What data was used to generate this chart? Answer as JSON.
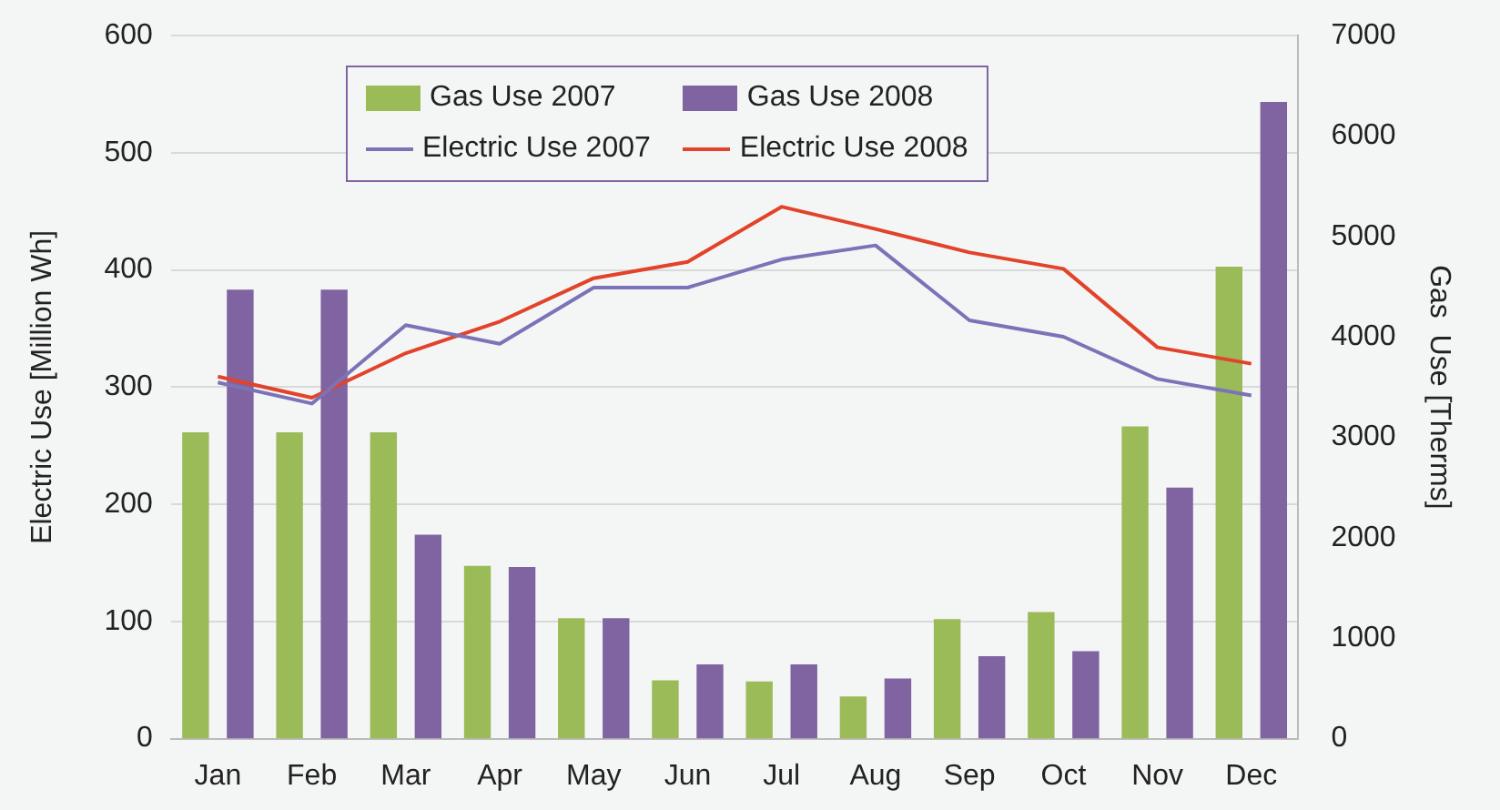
{
  "chart_data": {
    "type": "bar",
    "ylabel": "Electric Use [Million Wh]",
    "y2label": "Gas  Use [Therms]",
    "categories": [
      "Jan",
      "Feb",
      "Mar",
      "Apr",
      "May",
      "Jun",
      "Jul",
      "Aug",
      "Sep",
      "Oct",
      "Nov",
      "Dec"
    ],
    "series": [
      {
        "name": "Gas Use 2007",
        "axis": "y2",
        "color": "#9bbb59",
        "values": [
          3050,
          3050,
          3050,
          1720,
          1200,
          580,
          570,
          420,
          1190,
          1260,
          3110,
          4700
        ]
      },
      {
        "name": "Gas Use 2008",
        "axis": "y2",
        "color": "#8064a2",
        "values": [
          4470,
          4470,
          2030,
          1710,
          1200,
          740,
          740,
          600,
          820,
          870,
          2500,
          6340
        ]
      },
      {
        "name": "Electric Use 2007",
        "type": "line",
        "color": "#7b73b8",
        "values": [
          304,
          286,
          353,
          337,
          385,
          385,
          409,
          421,
          357,
          343,
          307,
          293
        ]
      },
      {
        "name": "Electric Use 2008",
        "type": "line",
        "color": "#e2432b",
        "values": [
          309,
          291,
          329,
          356,
          393,
          407,
          454,
          435,
          415,
          401,
          334,
          320
        ]
      }
    ],
    "ylim": [
      0,
      600
    ],
    "yticks": [
      0,
      100,
      200,
      300,
      400,
      500,
      600
    ],
    "y2lim": [
      0,
      7000
    ],
    "y2ticks": [
      0,
      1000,
      2000,
      3000,
      4000,
      5000,
      6000,
      7000
    ],
    "grid": "y",
    "legend": "top left",
    "marker": "none"
  }
}
